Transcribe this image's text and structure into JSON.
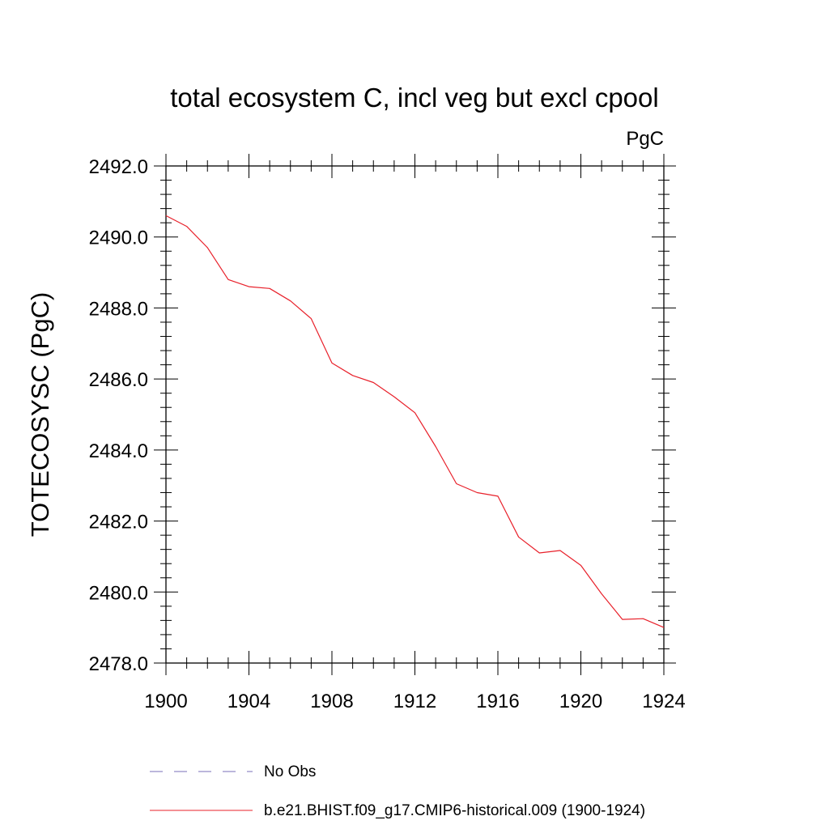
{
  "chart_data": {
    "type": "line",
    "title": "total ecosystem C, incl veg but excl cpool",
    "units_label": "PgC",
    "ylabel": "TOTECOSYSC  (PgC)",
    "xlabel": "",
    "xlim": [
      1900,
      1924
    ],
    "ylim": [
      2478.0,
      2492.0
    ],
    "x_ticks": [
      "1900",
      "1904",
      "1908",
      "1912",
      "1916",
      "1920",
      "1924"
    ],
    "x_tick_values": [
      1900,
      1904,
      1908,
      1912,
      1916,
      1920,
      1924
    ],
    "y_ticks": [
      "2478.0",
      "2480.0",
      "2482.0",
      "2484.0",
      "2486.0",
      "2488.0",
      "2490.0",
      "2492.0"
    ],
    "y_tick_values": [
      2478,
      2480,
      2482,
      2484,
      2486,
      2488,
      2490,
      2492
    ],
    "grid": false,
    "legend_position": "bottom",
    "legend": [
      {
        "name": "No Obs",
        "color": "#7a6fb8",
        "style": "dashed"
      },
      {
        "name": "b.e21.BHIST.f09_g17.CMIP6-historical.009 (1900-1924)",
        "color": "#e8202a",
        "style": "solid"
      }
    ],
    "series": [
      {
        "name": "b.e21.BHIST.f09_g17.CMIP6-historical.009 (1900-1924)",
        "color": "#e8202a",
        "x": [
          1900,
          1901,
          1902,
          1903,
          1904,
          1905,
          1906,
          1907,
          1908,
          1909,
          1910,
          1911,
          1912,
          1913,
          1914,
          1915,
          1916,
          1917,
          1918,
          1919,
          1920,
          1921,
          1922,
          1923,
          1924
        ],
        "y": [
          2490.6,
          2490.3,
          2489.7,
          2488.8,
          2488.6,
          2488.55,
          2488.2,
          2487.7,
          2486.45,
          2486.1,
          2485.9,
          2485.5,
          2485.05,
          2484.1,
          2483.05,
          2482.8,
          2482.7,
          2481.55,
          2481.1,
          2481.17,
          2480.75,
          2479.95,
          2479.23,
          2479.25,
          2479.0
        ]
      }
    ]
  }
}
